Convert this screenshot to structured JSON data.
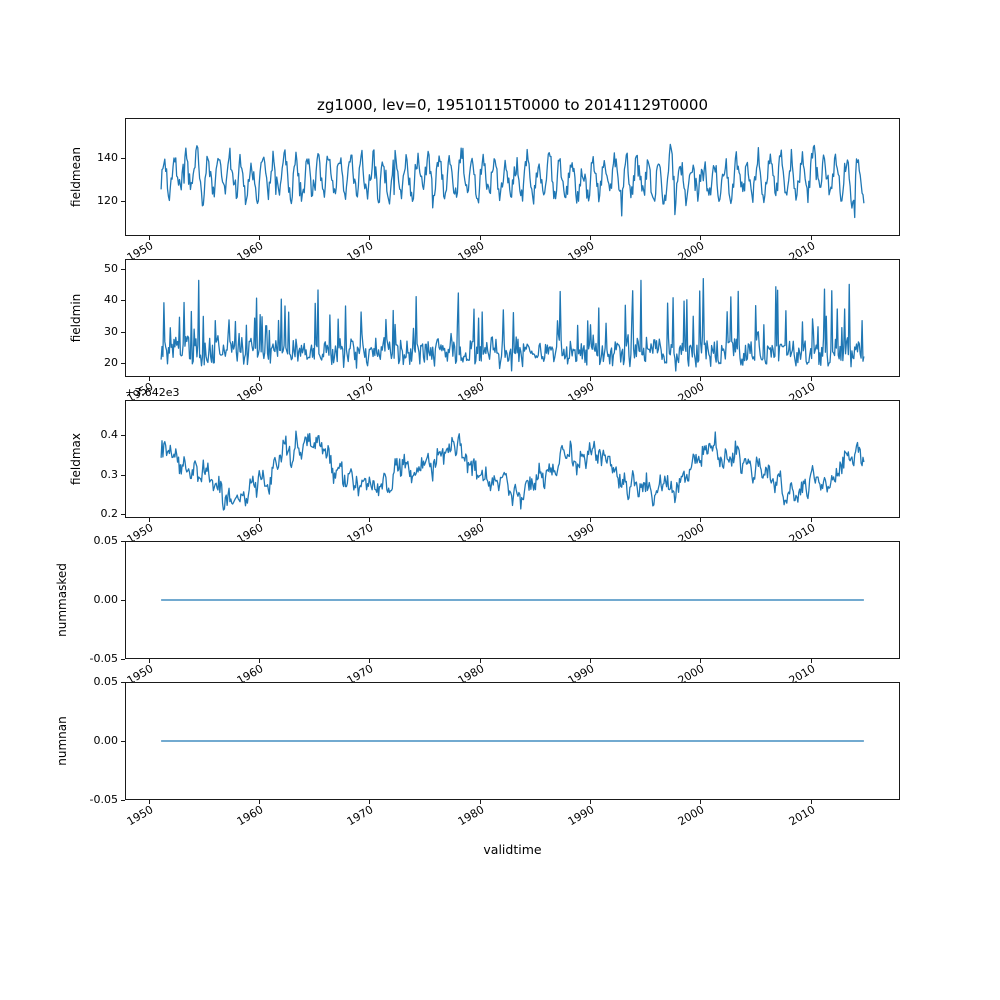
{
  "figure": {
    "title": "zg1000, lev=0, 19510115T0000 to 20141129T0000",
    "xlabel": "validtime",
    "background": "#ffffff",
    "line_color": "#1f77b4",
    "text_color": "#000000",
    "xlim": [
      1947.85,
      2018.1
    ],
    "x_start": 1951.04,
    "x_end": 2014.91,
    "n_points": 767,
    "xticks": [
      {
        "v": 1950,
        "label": "1950"
      },
      {
        "v": 1960,
        "label": "1960"
      },
      {
        "v": 1970,
        "label": "1970"
      },
      {
        "v": 1980,
        "label": "1980"
      },
      {
        "v": 1990,
        "label": "1990"
      },
      {
        "v": 2000,
        "label": "2000"
      },
      {
        "v": 2010,
        "label": "2010"
      }
    ]
  },
  "chart_data": [
    {
      "type": "line",
      "name": "fieldmean",
      "ylabel": "fieldmean",
      "ylim": [
        103.5,
        158.5
      ],
      "yticks": [
        {
          "v": 120,
          "label": "120"
        },
        {
          "v": 140,
          "label": "140"
        }
      ],
      "gen": {
        "base": 131,
        "season": 8,
        "phi": 0.75,
        "red": 4,
        "white": 4.5,
        "spike_p": 0.02,
        "spike_amp": -16,
        "clamp": [
          106,
          156
        ],
        "seed": 7
      }
    },
    {
      "type": "line",
      "name": "fieldmin",
      "ylabel": "fieldmin",
      "ylim": [
        15.6,
        53.2
      ],
      "yticks": [
        {
          "v": 20,
          "label": "20"
        },
        {
          "v": 30,
          "label": "30"
        },
        {
          "v": 40,
          "label": "40"
        },
        {
          "v": 50,
          "label": "50"
        }
      ],
      "gen": {
        "base": 23.5,
        "season": 1.5,
        "phi": 0.5,
        "red": 3,
        "white": 3.5,
        "spike_p": 0.1,
        "spike_amp": 20,
        "clamp": [
          17,
          51.5
        ],
        "seed": 3
      }
    },
    {
      "type": "line",
      "name": "fieldmax",
      "ylabel": "fieldmax",
      "offset_text": "+3.642e3",
      "ylim": [
        0.19,
        0.49
      ],
      "yticks": [
        {
          "v": 0.2,
          "label": "0.2"
        },
        {
          "v": 0.3,
          "label": "0.3"
        },
        {
          "v": 0.4,
          "label": "0.4"
        }
      ],
      "gen": {
        "base": 0.315,
        "season": 0.012,
        "phi": 0.9,
        "red": 0.03,
        "white": 0.02,
        "slow": [
          0.055,
          150,
          1.2
        ],
        "spike_p": 0,
        "spike_amp": 0,
        "clamp": [
          0.2,
          0.48
        ],
        "seed": 12
      }
    },
    {
      "type": "line",
      "name": "nummasked",
      "ylabel": "nummasked",
      "ylim": [
        -0.05,
        0.05
      ],
      "yticks": [
        {
          "v": -0.05,
          "label": "-0.05"
        },
        {
          "v": 0,
          "label": "0.00"
        },
        {
          "v": 0.05,
          "label": "0.05"
        }
      ],
      "gen": {
        "base": 0,
        "clamp": [
          0,
          0
        ],
        "seed": 4
      }
    },
    {
      "type": "line",
      "name": "numnan",
      "ylabel": "numnan",
      "ylim": [
        -0.05,
        0.05
      ],
      "yticks": [
        {
          "v": -0.05,
          "label": "-0.05"
        },
        {
          "v": 0,
          "label": "0.00"
        },
        {
          "v": 0.05,
          "label": "0.05"
        }
      ],
      "gen": {
        "base": 0,
        "clamp": [
          0,
          0
        ],
        "seed": 5
      }
    }
  ]
}
